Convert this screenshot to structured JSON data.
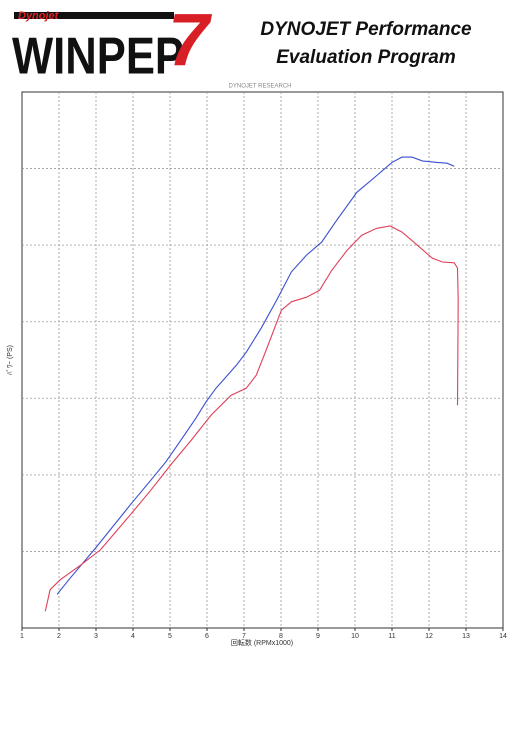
{
  "header": {
    "brand": "Dynojet",
    "logo": "WINPEP",
    "version": "7",
    "title_line1": "DYNOJET Performance",
    "title_line2": "Evaluation Program"
  },
  "chart_data": {
    "type": "line",
    "subtitle": "DYNOJET RESEARCH",
    "x_label": "回転数 (RPMx1000)",
    "y_label": "ﾊﾟﾜｰ (PS)",
    "xlim": [
      1,
      14
    ],
    "xticks": [
      1,
      2,
      3,
      4,
      5,
      6,
      7,
      8,
      9,
      10,
      11,
      12,
      13,
      14
    ],
    "ylim": [
      0,
      7
    ],
    "ygrid": [
      1,
      2,
      3,
      4,
      5,
      6
    ],
    "grid": true,
    "series": [
      {
        "color": "#3a4fd0",
        "x": [
          1.95,
          2.3,
          2.98,
          3.93,
          4.48,
          4.89,
          5.29,
          5.7,
          5.97,
          6.24,
          6.52,
          6.79,
          7.06,
          7.47,
          7.88,
          8.28,
          8.69,
          9.1,
          9.51,
          10.05,
          10.59,
          11.0,
          11.27,
          11.54,
          11.82,
          12.22,
          12.49,
          12.68
        ],
        "values": [
          0.44,
          0.65,
          1.04,
          1.61,
          1.93,
          2.17,
          2.45,
          2.74,
          2.95,
          3.13,
          3.28,
          3.43,
          3.6,
          3.92,
          4.28,
          4.65,
          4.87,
          5.04,
          5.33,
          5.69,
          5.91,
          6.08,
          6.15,
          6.15,
          6.1,
          6.08,
          6.07,
          6.03
        ]
      },
      {
        "color": "#e0405a",
        "x": [
          1.63,
          1.76,
          2.03,
          2.58,
          3.12,
          3.93,
          4.48,
          5.02,
          5.57,
          6.11,
          6.65,
          7.06,
          7.33,
          7.6,
          8.01,
          8.28,
          8.69,
          9.04,
          9.37,
          9.78,
          10.18,
          10.59,
          10.95,
          11.27,
          11.68,
          12.09,
          12.36,
          12.68,
          12.77,
          12.79,
          12.77
        ],
        "values": [
          0.22,
          0.5,
          0.63,
          0.82,
          1.02,
          1.48,
          1.8,
          2.13,
          2.45,
          2.78,
          3.04,
          3.13,
          3.3,
          3.63,
          4.15,
          4.26,
          4.32,
          4.41,
          4.67,
          4.93,
          5.13,
          5.22,
          5.25,
          5.17,
          5.0,
          4.83,
          4.78,
          4.77,
          4.7,
          4.28,
          2.91
        ]
      }
    ]
  }
}
